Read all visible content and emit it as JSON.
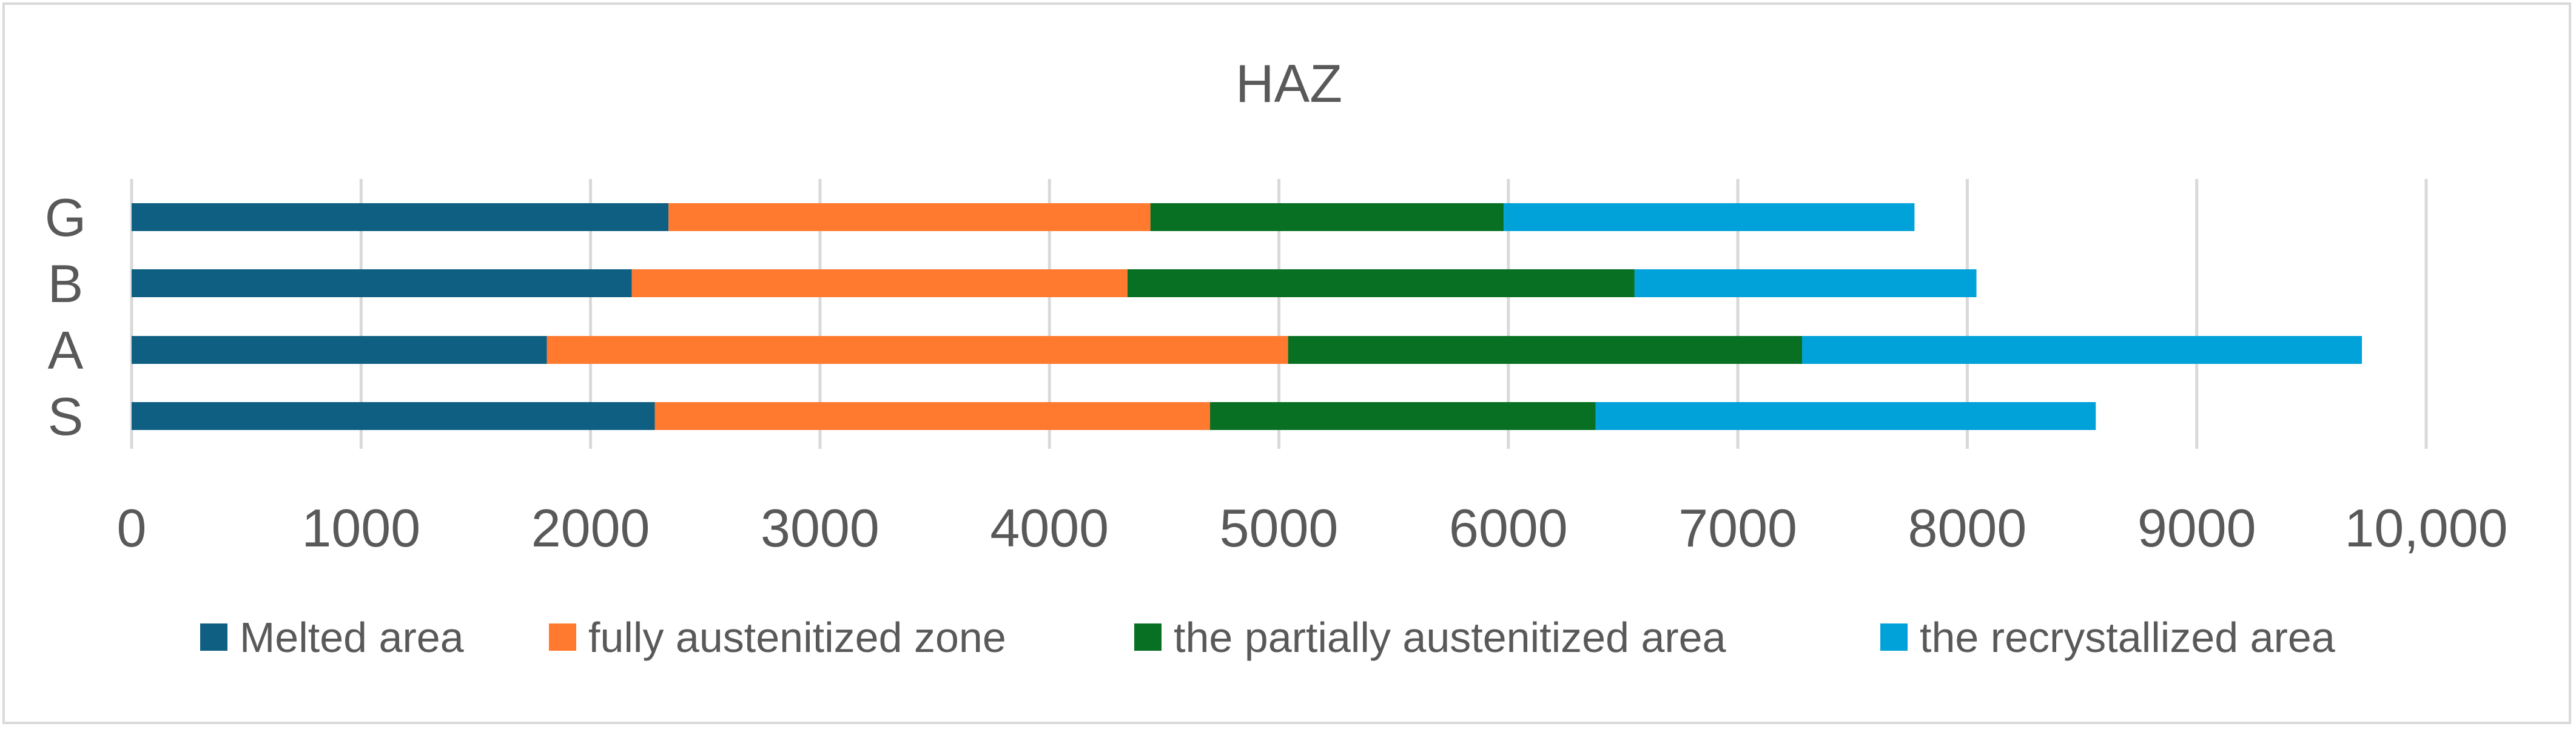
{
  "chart_data": {
    "type": "bar",
    "orientation": "horizontal",
    "stacked": true,
    "title": "HAZ",
    "xlabel": "",
    "ylabel": "",
    "categories": [
      "S",
      "A",
      "B",
      "G"
    ],
    "series": [
      {
        "name": "Melted area",
        "color": "#0f5f83",
        "values": [
          2280,
          1810,
          2180,
          2340
        ]
      },
      {
        "name": "fully austenitized zone",
        "color": "#ff7a2f",
        "values": [
          2420,
          3230,
          2160,
          2100
        ]
      },
      {
        "name": "the partially austenitized area",
        "color": "#077022",
        "values": [
          1680,
          2240,
          2210,
          1540
        ]
      },
      {
        "name": "the recrystallized area",
        "color": "#00a2d9",
        "values": [
          2180,
          2440,
          1490,
          1790
        ]
      }
    ],
    "xlim": [
      0,
      10000
    ],
    "x_tick_labels": [
      "0",
      "1000",
      "2000",
      "3000",
      "4000",
      "5000",
      "6000",
      "7000",
      "8000",
      "9000",
      "10,000"
    ],
    "grid": "vertical",
    "legend_position": "bottom"
  }
}
